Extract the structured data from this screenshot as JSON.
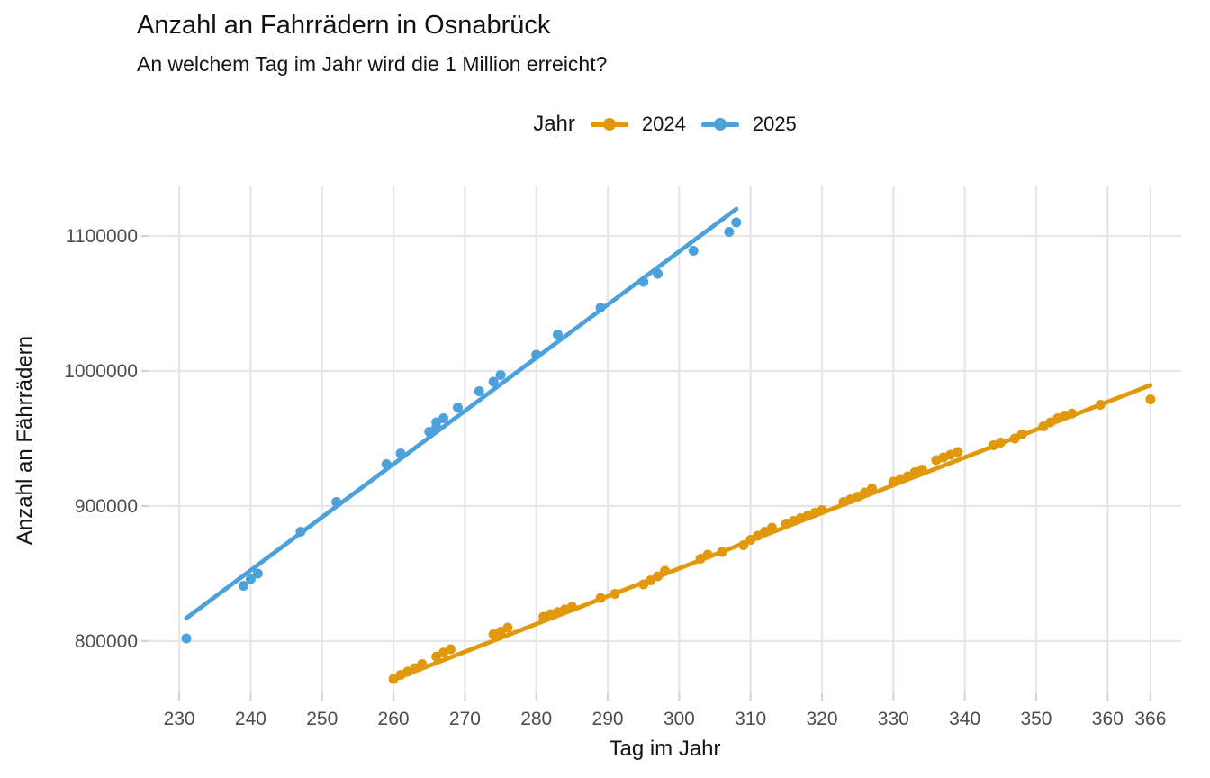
{
  "figure": {
    "title": "Anzahl an Fahrrädern in Osnabrück",
    "subtitle": "An welchem Tag im Jahr wird die 1 Million erreicht?"
  },
  "colors": {
    "background": "#FFFFFF",
    "grid": "#E6E6E6",
    "tick_mark": "#D4D4D4",
    "tick_text": "#4D4D4D",
    "text": "#141414",
    "orange_2024": "#E2980D",
    "blue_2025": "#4DA1DB"
  },
  "chart_data": {
    "type": "scatter",
    "title": "Anzahl an Fahrrädern in Osnabrück",
    "subtitle": "An welchem Tag im Jahr wird die 1 Million erreicht?",
    "xlabel": "Tag im Jahr",
    "ylabel": "Anzahl an Fährrädern",
    "legend_title": "Jahr",
    "legend_position": "top-center",
    "grid": true,
    "x_ticks": [
      230,
      240,
      250,
      260,
      270,
      280,
      290,
      300,
      310,
      320,
      330,
      340,
      350,
      360,
      366
    ],
    "y_ticks": [
      800000,
      900000,
      1000000,
      1100000
    ],
    "xlim": [
      225.7,
      370.3
    ],
    "ylim": [
      761300,
      1136700
    ],
    "series": [
      {
        "name": "2024",
        "color": "#E2980D",
        "trend": [
          [
            260,
            771500
          ],
          [
            366,
            989500
          ]
        ],
        "points": [
          [
            260,
            772000
          ],
          [
            261,
            775000
          ],
          [
            262,
            777500
          ],
          [
            263,
            780000
          ],
          [
            264,
            783000
          ],
          [
            266,
            788500
          ],
          [
            267,
            791500
          ],
          [
            268,
            794000
          ],
          [
            274,
            805000
          ],
          [
            275,
            807000
          ],
          [
            276,
            810000
          ],
          [
            281,
            818000
          ],
          [
            282,
            820000
          ],
          [
            283,
            821500
          ],
          [
            284,
            823500
          ],
          [
            285,
            825500
          ],
          [
            289,
            832000
          ],
          [
            291,
            835000
          ],
          [
            295,
            842000
          ],
          [
            296,
            845000
          ],
          [
            297,
            848000
          ],
          [
            298,
            852000
          ],
          [
            303,
            861000
          ],
          [
            304,
            864000
          ],
          [
            306,
            866000
          ],
          [
            309,
            871000
          ],
          [
            310,
            875000
          ],
          [
            311,
            878000
          ],
          [
            312,
            881000
          ],
          [
            313,
            884000
          ],
          [
            315,
            887000
          ],
          [
            316,
            889000
          ],
          [
            317,
            891000
          ],
          [
            318,
            893000
          ],
          [
            319,
            895000
          ],
          [
            320,
            897000
          ],
          [
            323,
            903000
          ],
          [
            324,
            905000
          ],
          [
            325,
            907000
          ],
          [
            326,
            910000
          ],
          [
            327,
            913000
          ],
          [
            330,
            918000
          ],
          [
            331,
            920000
          ],
          [
            332,
            922000
          ],
          [
            333,
            925000
          ],
          [
            334,
            927000
          ],
          [
            336,
            934000
          ],
          [
            337,
            936000
          ],
          [
            338,
            938000
          ],
          [
            339,
            940000
          ],
          [
            344,
            945000
          ],
          [
            345,
            947000
          ],
          [
            347,
            950000
          ],
          [
            348,
            953000
          ],
          [
            351,
            959000
          ],
          [
            352,
            962000
          ],
          [
            353,
            965000
          ],
          [
            354,
            967000
          ],
          [
            355,
            968500
          ],
          [
            359,
            975000
          ],
          [
            366,
            979000
          ]
        ]
      },
      {
        "name": "2025",
        "color": "#4DA1DB",
        "trend": [
          [
            231,
            817000
          ],
          [
            308,
            1120000
          ]
        ],
        "points": [
          [
            231,
            802000
          ],
          [
            239,
            841000
          ],
          [
            240,
            846000
          ],
          [
            241,
            850000
          ],
          [
            247,
            881000
          ],
          [
            252,
            903000
          ],
          [
            259,
            931000
          ],
          [
            261,
            939000
          ],
          [
            265,
            955000
          ],
          [
            266,
            958500
          ],
          [
            266,
            962000
          ],
          [
            267,
            965000
          ],
          [
            269,
            973000
          ],
          [
            272,
            985000
          ],
          [
            274,
            992000
          ],
          [
            275,
            997000
          ],
          [
            280,
            1012000
          ],
          [
            283,
            1027000
          ],
          [
            289,
            1047000
          ],
          [
            295,
            1066000
          ],
          [
            297,
            1072000
          ],
          [
            302,
            1089000
          ],
          [
            307,
            1103000
          ],
          [
            308,
            1110000
          ]
        ]
      }
    ]
  }
}
